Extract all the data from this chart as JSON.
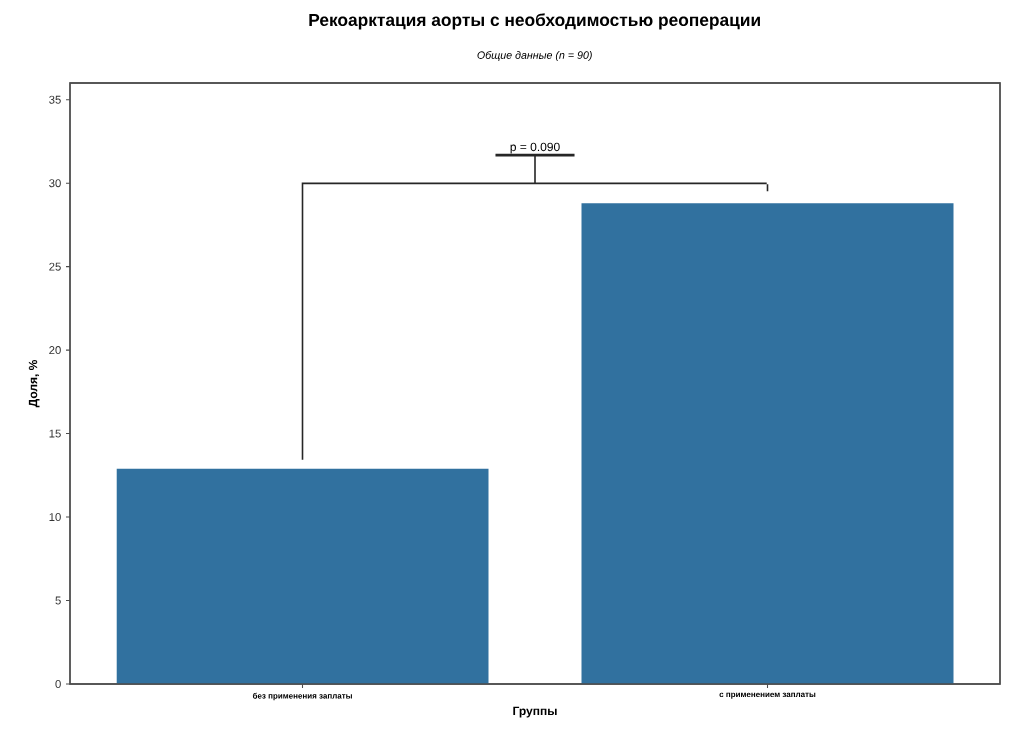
{
  "chart_data": {
    "type": "bar",
    "title": "Рекоарктация аорты с необходимостью реоперации",
    "subtitle": "Общие данные (n = 90)",
    "xlabel": "Группы",
    "ylabel": "Доля, %",
    "categories": [
      "без применения заплаты",
      "с применением заплаты"
    ],
    "values": [
      12.9,
      28.8
    ],
    "color": "#31719f",
    "ylim": [
      0,
      36
    ],
    "yticks": [
      0,
      5,
      10,
      15,
      20,
      25,
      30,
      35
    ],
    "grid": false,
    "annotations": [
      "p = 0.090"
    ]
  }
}
